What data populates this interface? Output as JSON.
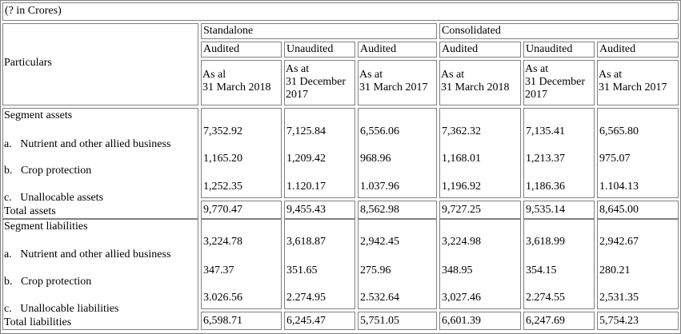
{
  "unit_note": "(? in Crores)",
  "header": {
    "particulars": "Particulars",
    "groups": {
      "standalone": "Standalone",
      "consolidated": "Consolidated"
    },
    "status": [
      "Audited",
      "Unaudited",
      "Audited",
      "Audited",
      "Unaudited",
      "Audited"
    ],
    "dates": [
      [
        "As al",
        "31 March 2018"
      ],
      [
        "As at",
        "31 December",
        "2017"
      ],
      [
        "As at",
        "31 March 2017"
      ],
      [
        "As at",
        "31 March 2018"
      ],
      [
        "As at",
        "31 December",
        "2017"
      ],
      [
        "As at",
        "31 March 2017"
      ]
    ]
  },
  "assets": {
    "heading": "Segment assets",
    "items": [
      "a.   Nutrient and other allied business",
      "b.   Crop protection",
      "c.   Unallocable assets"
    ],
    "values": [
      [
        "7,352.92",
        "1,165.20",
        "1,252.35"
      ],
      [
        "7,125.84",
        "1,209.42",
        "1.120.17"
      ],
      [
        "6,556.06",
        "968.96",
        "1.037.96"
      ],
      [
        "7,362.32",
        "1,168.01",
        "1,196.92"
      ],
      [
        "7,135.41",
        "1,213.37",
        "1,186.36"
      ],
      [
        "6,565.80",
        "975.07",
        "1.104.13"
      ]
    ],
    "total_label": "Total assets",
    "totals": [
      "9,770.47",
      "9,455.43",
      "8,562.98",
      "9,727.25",
      "9,535.14",
      "8,645.00"
    ]
  },
  "liabilities": {
    "heading": "Segment liabilities",
    "items": [
      "a.   Nutrient and other allied business",
      "b.   Crop protection",
      "c.   Unallocable liabilities"
    ],
    "values": [
      [
        "3,224.78",
        "347.37",
        "3.026.56"
      ],
      [
        "3,618.87",
        "351.65",
        "2.274.95"
      ],
      [
        "2,942.45",
        "275.96",
        "2.532.64"
      ],
      [
        "3,224.98",
        "348.95",
        "3,027.46"
      ],
      [
        "3,618.99",
        "354.15",
        "2.274.55"
      ],
      [
        "2,942.67",
        "280.21",
        "2,531.35"
      ]
    ],
    "total_label": "Total liabilities",
    "totals": [
      "6,598.71",
      "6,245.47",
      "5,751.05",
      "6,601.39",
      "6,247.69",
      "5,754.23"
    ]
  }
}
